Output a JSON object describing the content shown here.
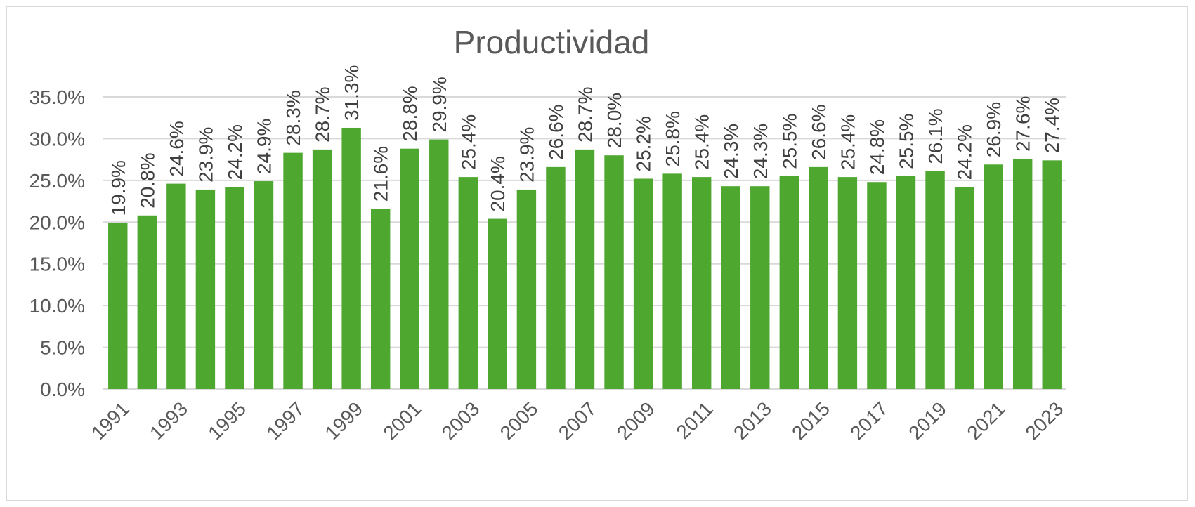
{
  "chart_data": {
    "type": "bar",
    "title": "Productividad",
    "xlabel": "",
    "ylabel": "",
    "categories": [
      "1991",
      "1992",
      "1993",
      "1994",
      "1995",
      "1996",
      "1997",
      "1998",
      "1999",
      "2000",
      "2001",
      "2002",
      "2003",
      "2004",
      "2005",
      "2006",
      "2007",
      "2008",
      "2009",
      "2010",
      "2011",
      "2012",
      "2013",
      "2014",
      "2015",
      "2016",
      "2017",
      "2018",
      "2019",
      "2020",
      "2021",
      "2022",
      "2023"
    ],
    "shown_x_ticks": [
      "1991",
      "1993",
      "1995",
      "1997",
      "1999",
      "2001",
      "2003",
      "2005",
      "2007",
      "2009",
      "2011",
      "2013",
      "2015",
      "2017",
      "2019",
      "2021",
      "2023"
    ],
    "values": [
      19.9,
      20.8,
      24.6,
      23.9,
      24.2,
      24.9,
      28.3,
      28.7,
      31.3,
      21.6,
      28.8,
      29.9,
      25.4,
      20.4,
      23.9,
      26.6,
      28.7,
      28.0,
      25.2,
      25.8,
      25.4,
      24.3,
      24.3,
      25.5,
      26.6,
      25.4,
      24.8,
      25.5,
      26.1,
      24.2,
      26.9,
      27.6,
      27.4
    ],
    "data_labels": [
      "19.9%",
      "20.8%",
      "24.6%",
      "23.9%",
      "24.2%",
      "24.9%",
      "28.3%",
      "28.7%",
      "31.3%",
      "21.6%",
      "28.8%",
      "29.9%",
      "25.4%",
      "20.4%",
      "23.9%",
      "26.6%",
      "28.7%",
      "28.0%",
      "25.2%",
      "25.8%",
      "25.4%",
      "24.3%",
      "24.3%",
      "25.5%",
      "26.6%",
      "25.4%",
      "24.8%",
      "25.5%",
      "26.1%",
      "24.2%",
      "26.9%",
      "27.6%",
      "27.4%"
    ],
    "ylim": [
      0,
      35
    ],
    "y_ticks": [
      0,
      5,
      10,
      15,
      20,
      25,
      30,
      35
    ],
    "y_tick_labels": [
      "0.0%",
      "5.0%",
      "10.0%",
      "15.0%",
      "20.0%",
      "25.0%",
      "30.0%",
      "35.0%"
    ],
    "grid": true,
    "legend": "none",
    "bar_color": "#4ea72e",
    "grid_color": "#d9d9d9",
    "text_color": "#595959"
  }
}
